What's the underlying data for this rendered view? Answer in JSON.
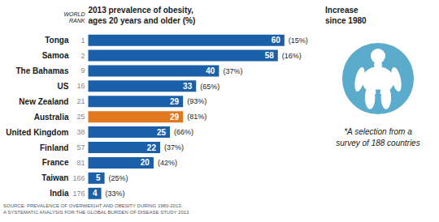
{
  "chart_data": {
    "type": "bar",
    "orientation": "horizontal",
    "title": "2013 prevalence of obesity,\nages 20 years and older (%)",
    "categories": [
      "Tonga",
      "Samoa",
      "The Bahamas",
      "US",
      "New Zealand",
      "Australia",
      "United Kingdom",
      "Finland",
      "France",
      "Taiwan",
      "India"
    ],
    "values": [
      60,
      58,
      40,
      33,
      29,
      29,
      25,
      22,
      20,
      5,
      4
    ],
    "colors": [
      "#1a5fa8",
      "#1a5fa8",
      "#1a5fa8",
      "#1a5fa8",
      "#1a5fa8",
      "#e07820",
      "#1a5fa8",
      "#1a5fa8",
      "#1a5fa8",
      "#1a5fa8",
      "#1a5fa8"
    ],
    "ranks": [
      "1",
      "2",
      "9",
      "16",
      "21",
      "25",
      "38",
      "57",
      "81",
      "166",
      "176"
    ],
    "increases": [
      "(15%)",
      "(16%)",
      "(37%)",
      "(65%)",
      "(93%)",
      "(81%)",
      "(66%)",
      "(37%)",
      "(42%)",
      "(25%)",
      "(33%)"
    ],
    "rank_header": "WORLD\nRANK",
    "increase_header": "Increase\nsince 1980",
    "source": "SOURCE: PREVALENCE OF OVERWEIGHT AND OBESITY DURING 1980-2013:\nA SYSTEMATIC ANALYSIS FOR THE GLOBAL BURDEN OF DISEASE STUDY 2013",
    "annotation": "*A selection from a\nsurvey of 188 countries",
    "xlim": [
      -22,
      67
    ],
    "data_labels": true,
    "tick_labels": false
  }
}
